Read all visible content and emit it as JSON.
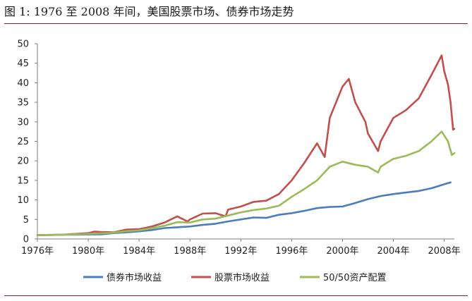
{
  "figure_title": "图 1: 1976 至 2008 年间，美国股票市场、债券市场走势",
  "chart_data": {
    "type": "line",
    "title": "",
    "xlabel": "",
    "ylabel": "",
    "xlim": [
      1976,
      2008.8
    ],
    "ylim": [
      0,
      50
    ],
    "grid": false,
    "legend_position": "bottom",
    "x_ticks": [
      "1976年",
      "1980年",
      "1984年",
      "1988年",
      "1992年",
      "1996年",
      "2000年",
      "2004年",
      "2008年"
    ],
    "y_ticks": [
      0,
      5,
      10,
      15,
      20,
      25,
      30,
      35,
      40,
      45,
      50
    ],
    "series": [
      {
        "name": "债券市场收益",
        "color": "#4a7ebb",
        "points": [
          [
            1976,
            1.0
          ],
          [
            1977,
            1.05
          ],
          [
            1978,
            1.08
          ],
          [
            1979,
            1.1
          ],
          [
            1980,
            1.15
          ],
          [
            1981,
            1.2
          ],
          [
            1982,
            1.5
          ],
          [
            1983,
            1.7
          ],
          [
            1984,
            1.95
          ],
          [
            1985,
            2.3
          ],
          [
            1986,
            2.8
          ],
          [
            1987,
            3.0
          ],
          [
            1988,
            3.2
          ],
          [
            1989,
            3.6
          ],
          [
            1990,
            3.9
          ],
          [
            1991,
            4.5
          ],
          [
            1992,
            5.0
          ],
          [
            1993,
            5.5
          ],
          [
            1994,
            5.4
          ],
          [
            1995,
            6.2
          ],
          [
            1996,
            6.6
          ],
          [
            1997,
            7.2
          ],
          [
            1998,
            7.9
          ],
          [
            1999,
            8.2
          ],
          [
            2000,
            8.3
          ],
          [
            2001,
            9.2
          ],
          [
            2002,
            10.2
          ],
          [
            2003,
            11.0
          ],
          [
            2004,
            11.5
          ],
          [
            2005,
            11.9
          ],
          [
            2006,
            12.3
          ],
          [
            2007,
            13.0
          ],
          [
            2007.5,
            13.5
          ],
          [
            2008,
            14.0
          ],
          [
            2008.5,
            14.5
          ]
        ]
      },
      {
        "name": "股票市场收益",
        "color": "#c0504d",
        "points": [
          [
            1976,
            1.0
          ],
          [
            1977,
            1.0
          ],
          [
            1978,
            1.1
          ],
          [
            1979,
            1.3
          ],
          [
            1980,
            1.5
          ],
          [
            1980.5,
            1.9
          ],
          [
            1981,
            1.8
          ],
          [
            1982,
            1.7
          ],
          [
            1983,
            2.4
          ],
          [
            1984,
            2.5
          ],
          [
            1985,
            3.2
          ],
          [
            1986,
            4.2
          ],
          [
            1987,
            5.8
          ],
          [
            1987.8,
            4.5
          ],
          [
            1988,
            5.0
          ],
          [
            1989,
            6.5
          ],
          [
            1990,
            6.6
          ],
          [
            1990.8,
            5.8
          ],
          [
            1991,
            7.5
          ],
          [
            1992,
            8.3
          ],
          [
            1993,
            9.5
          ],
          [
            1994,
            9.8
          ],
          [
            1995,
            11.5
          ],
          [
            1996,
            15.0
          ],
          [
            1997,
            19.5
          ],
          [
            1998,
            24.5
          ],
          [
            1998.6,
            21.0
          ],
          [
            1999,
            31.0
          ],
          [
            2000,
            39.0
          ],
          [
            2000.5,
            41.0
          ],
          [
            2001,
            35.0
          ],
          [
            2001.8,
            30.0
          ],
          [
            2002,
            27.0
          ],
          [
            2002.8,
            22.5
          ],
          [
            2003,
            25.0
          ],
          [
            2004,
            31.0
          ],
          [
            2005,
            33.0
          ],
          [
            2006,
            36.0
          ],
          [
            2007,
            42.0
          ],
          [
            2007.8,
            47.0
          ],
          [
            2008,
            43.0
          ],
          [
            2008.3,
            39.5
          ],
          [
            2008.5,
            35.0
          ],
          [
            2008.7,
            28.0
          ],
          [
            2008.8,
            28.2
          ]
        ]
      },
      {
        "name": "50/50资产配置",
        "color": "#9bbb59",
        "points": [
          [
            1976,
            1.0
          ],
          [
            1977,
            1.05
          ],
          [
            1978,
            1.1
          ],
          [
            1979,
            1.2
          ],
          [
            1980,
            1.3
          ],
          [
            1981,
            1.45
          ],
          [
            1982,
            1.6
          ],
          [
            1983,
            2.0
          ],
          [
            1984,
            2.2
          ],
          [
            1985,
            2.8
          ],
          [
            1986,
            3.4
          ],
          [
            1987,
            4.3
          ],
          [
            1988,
            4.2
          ],
          [
            1989,
            5.0
          ],
          [
            1990,
            5.2
          ],
          [
            1991,
            6.0
          ],
          [
            1992,
            6.8
          ],
          [
            1993,
            7.4
          ],
          [
            1994,
            7.8
          ],
          [
            1995,
            8.5
          ],
          [
            1996,
            10.8
          ],
          [
            1997,
            12.8
          ],
          [
            1998,
            15.0
          ],
          [
            1999,
            18.5
          ],
          [
            2000,
            19.8
          ],
          [
            2001,
            19.0
          ],
          [
            2002,
            18.5
          ],
          [
            2002.8,
            17.0
          ],
          [
            2003,
            18.5
          ],
          [
            2004,
            20.5
          ],
          [
            2005,
            21.3
          ],
          [
            2006,
            22.5
          ],
          [
            2007,
            25.0
          ],
          [
            2007.8,
            27.5
          ],
          [
            2008,
            26.5
          ],
          [
            2008.3,
            25.0
          ],
          [
            2008.6,
            21.5
          ],
          [
            2008.8,
            22.0
          ]
        ]
      }
    ]
  }
}
